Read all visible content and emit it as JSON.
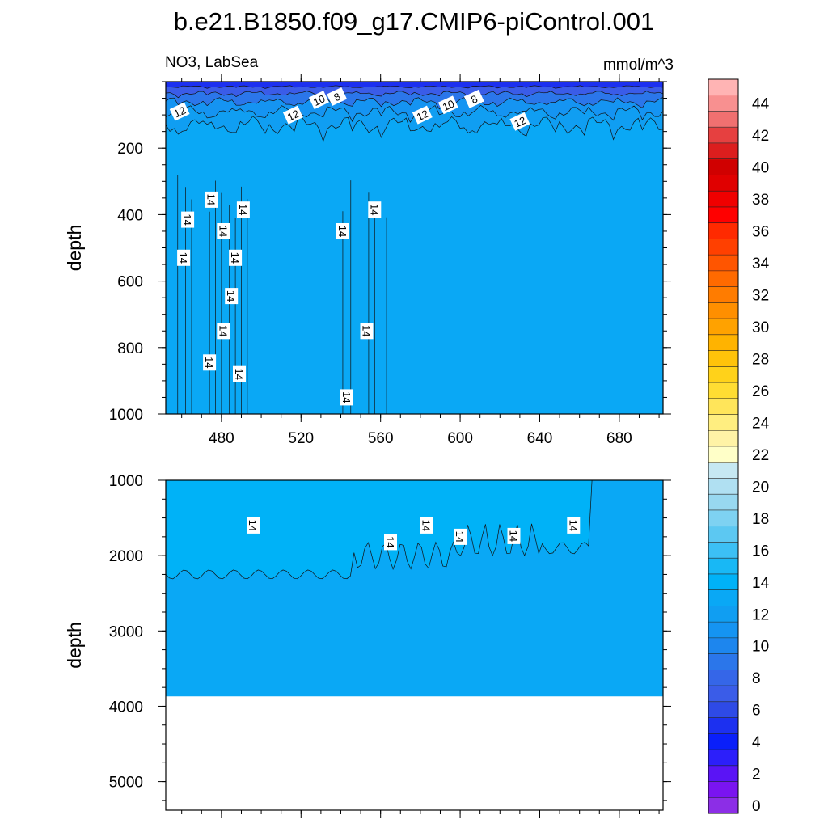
{
  "chart_data": {
    "type": "heatmap",
    "title": "b.e21.B1850.f09_g17.CMIP6-piControl.001",
    "subtitle_left": "NO3, LabSea",
    "subtitle_right": "mmol/m^3",
    "colorbar": {
      "levels": [
        0,
        2,
        4,
        6,
        8,
        10,
        12,
        14,
        16,
        18,
        20,
        22,
        24,
        26,
        28,
        30,
        32,
        34,
        36,
        38,
        40,
        42,
        44
      ],
      "tick_labels": [
        "0",
        "2",
        "4",
        "6",
        "8",
        "10",
        "12",
        "14",
        "16",
        "18",
        "20",
        "22",
        "24",
        "26",
        "28",
        "30",
        "32",
        "34",
        "36",
        "38",
        "40",
        "42",
        "44"
      ],
      "colors": [
        "#8c2ee6",
        "#7a14f0",
        "#5a14f5",
        "#2c1ffa",
        "#0a1ffa",
        "#1c30f0",
        "#2e4ae6",
        "#3a5ce8",
        "#3566e8",
        "#2b76ea",
        "#1d86ee",
        "#1594f2",
        "#109ef2",
        "#0aa8f5",
        "#00b2f7",
        "#18b8f5",
        "#3cc0f5",
        "#5cc8f2",
        "#7ed2f2",
        "#98d8f0",
        "#b0e0f2",
        "#c6e8f2",
        "#ffffc8",
        "#fff3a6",
        "#ffee80",
        "#ffe55a",
        "#ffdd33",
        "#ffd21a",
        "#ffc30a",
        "#ffb300",
        "#ffa200",
        "#ff8f00",
        "#ff7c00",
        "#ff6a00",
        "#ff5500",
        "#ff4000",
        "#ff2a00",
        "#ff0000",
        "#f00000",
        "#e00000",
        "#d00000",
        "#dc1e1e",
        "#e64040",
        "#f07070",
        "#f89090",
        "#ffb4b4"
      ]
    },
    "panels": [
      {
        "name": "upper",
        "ylabel": "depth",
        "xlim": [
          452,
          702
        ],
        "ylim": [
          0,
          1000
        ],
        "y_reversed": true,
        "xticks": [
          480,
          520,
          560,
          600,
          640,
          680
        ],
        "xtick_labels": [
          "480",
          "520",
          "560",
          "600",
          "640",
          "680"
        ],
        "yticks": [
          200,
          400,
          600,
          800,
          1000
        ],
        "ytick_labels": [
          "200",
          "400",
          "600",
          "800",
          "1000"
        ],
        "background_value": 13,
        "surface_bands": [
          {
            "to_depth": 15,
            "value": 5
          },
          {
            "to_depth": 35,
            "value": 7
          },
          {
            "to_depth": 60,
            "value": 9
          },
          {
            "to_depth": 90,
            "value": 11
          },
          {
            "to_depth": 130,
            "value": 12
          }
        ],
        "contour_labels": [
          {
            "text": "12",
            "x": 459,
            "y": 90
          },
          {
            "text": "10",
            "x": 529,
            "y": 55
          },
          {
            "text": "8",
            "x": 538,
            "y": 45
          },
          {
            "text": "12",
            "x": 516,
            "y": 100
          },
          {
            "text": "12",
            "x": 581,
            "y": 100
          },
          {
            "text": "10",
            "x": 594,
            "y": 70
          },
          {
            "text": "8",
            "x": 607,
            "y": 52
          },
          {
            "text": "12",
            "x": 630,
            "y": 120
          },
          {
            "text": "14",
            "x": 475,
            "y": 355
          },
          {
            "text": "14",
            "x": 463,
            "y": 415
          },
          {
            "text": "14",
            "x": 491,
            "y": 385
          },
          {
            "text": "14",
            "x": 481,
            "y": 450
          },
          {
            "text": "14",
            "x": 461,
            "y": 530
          },
          {
            "text": "14",
            "x": 487,
            "y": 530
          },
          {
            "text": "14",
            "x": 485,
            "y": 645
          },
          {
            "text": "14",
            "x": 481,
            "y": 750
          },
          {
            "text": "14",
            "x": 474,
            "y": 845
          },
          {
            "text": "14",
            "x": 489,
            "y": 880
          },
          {
            "text": "14",
            "x": 541,
            "y": 450
          },
          {
            "text": "14",
            "x": 557,
            "y": 385
          },
          {
            "text": "14",
            "x": 553,
            "y": 750
          },
          {
            "text": "14",
            "x": 543,
            "y": 950
          }
        ]
      },
      {
        "name": "lower",
        "ylabel": "depth",
        "xlim": [
          452,
          702
        ],
        "ylim": [
          1000,
          5380
        ],
        "y_reversed": true,
        "yticks": [
          1000,
          2000,
          3000,
          4000,
          5000
        ],
        "ytick_labels": [
          "1000",
          "2000",
          "3000",
          "4000",
          "5000"
        ],
        "background_value": 13,
        "bottom_depth": 3870,
        "contour_labels": [
          {
            "text": "14",
            "x": 496,
            "y": 1600
          },
          {
            "text": "14",
            "x": 565,
            "y": 1820
          },
          {
            "text": "14",
            "x": 583,
            "y": 1600
          },
          {
            "text": "14",
            "x": 600,
            "y": 1750
          },
          {
            "text": "14",
            "x": 627,
            "y": 1740
          },
          {
            "text": "14",
            "x": 657,
            "y": 1600
          }
        ]
      }
    ]
  }
}
